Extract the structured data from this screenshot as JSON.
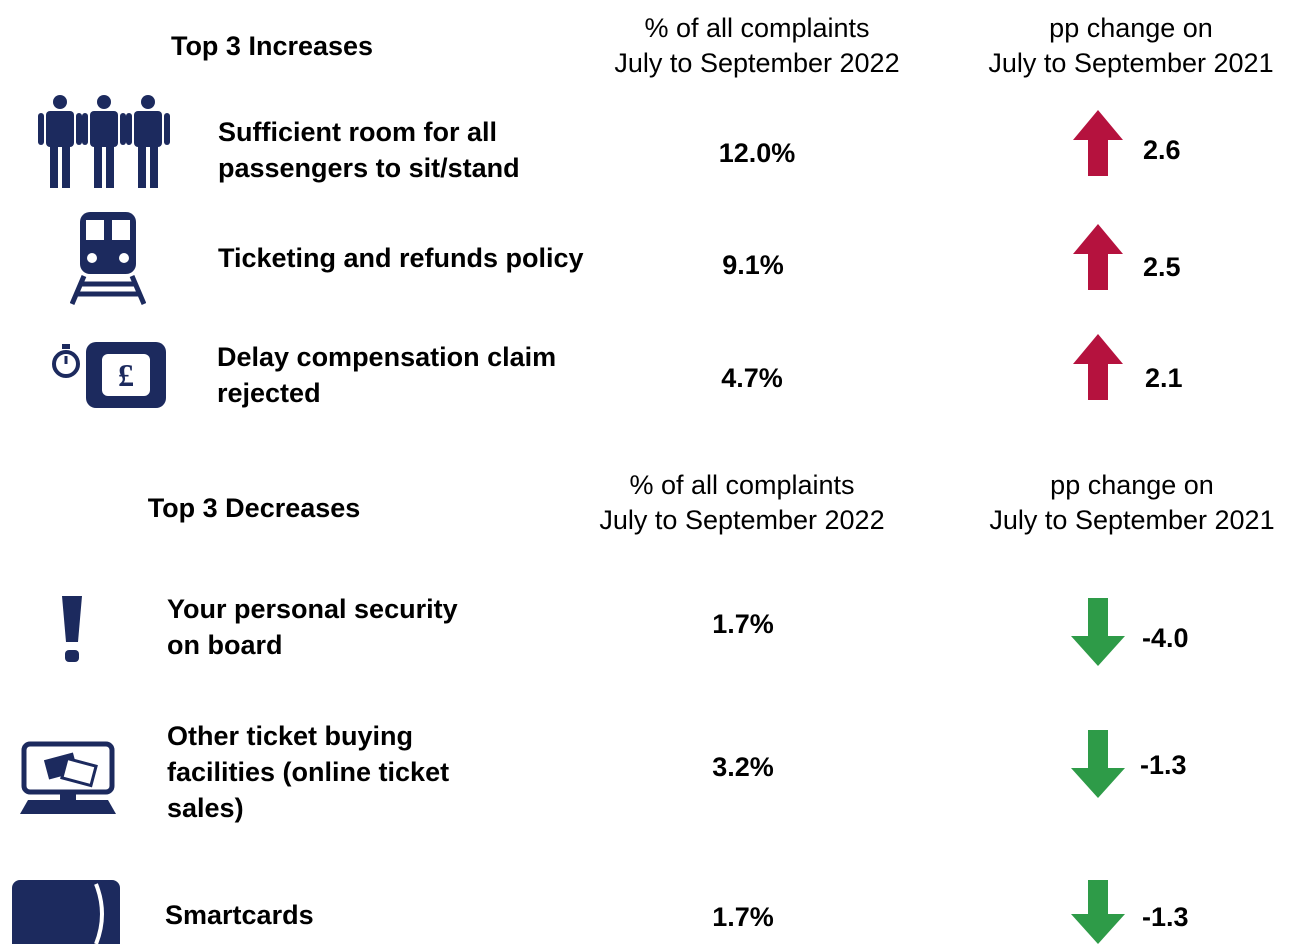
{
  "increases": {
    "title": "Top 3 Increases",
    "header_share": [
      "% of all complaints",
      "July to September 2022"
    ],
    "header_change": [
      "pp change on",
      "July to September 2021"
    ],
    "rows": [
      {
        "label": [
          "Sufficient room for all",
          "passengers to sit/stand"
        ],
        "share": "12.0%",
        "change": "2.6"
      },
      {
        "label": [
          "Ticketing and refunds policy"
        ],
        "share": "9.1%",
        "change": "2.5"
      },
      {
        "label": [
          "Delay compensation claim",
          "rejected"
        ],
        "share": "4.7%",
        "change": "2.1"
      }
    ]
  },
  "decreases": {
    "title": "Top 3 Decreases",
    "header_share": [
      "% of all complaints",
      "July to September 2022"
    ],
    "header_change": [
      "pp change on",
      "July to September 2021"
    ],
    "rows": [
      {
        "label": [
          "Your personal security",
          "on board"
        ],
        "share": "1.7%",
        "change": "-4.0"
      },
      {
        "label": [
          "Other ticket buying",
          "facilities (online ticket",
          "sales)"
        ],
        "share": "3.2%",
        "change": "-1.3"
      },
      {
        "label": [
          "Smartcards"
        ],
        "share": "1.7%",
        "change": "-1.3"
      }
    ]
  }
}
